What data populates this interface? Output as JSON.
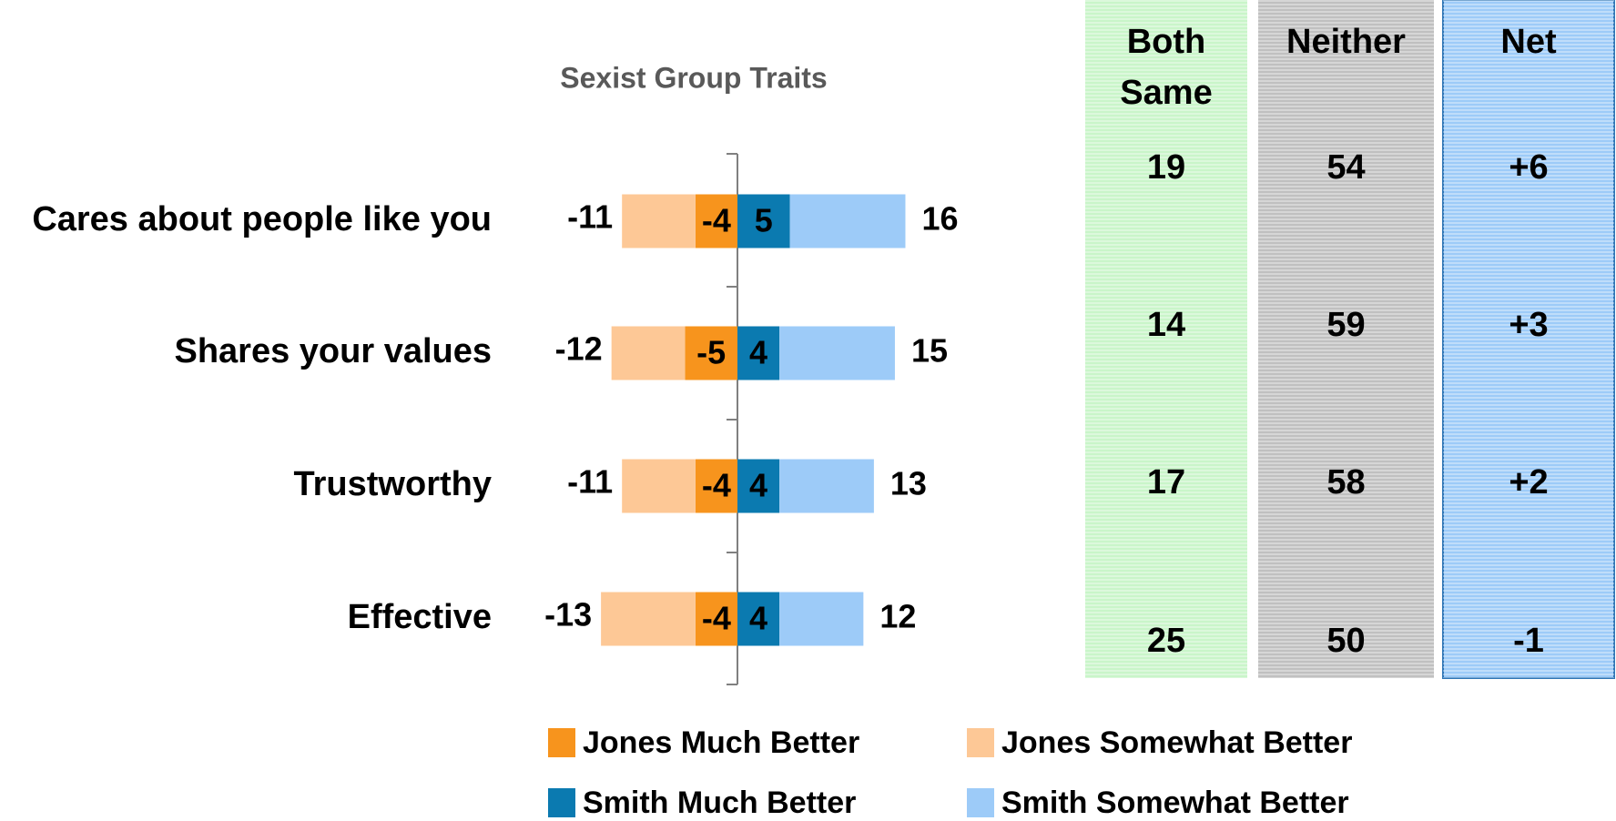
{
  "chart_data": {
    "type": "bar",
    "orientation": "horizontal",
    "stacked": true,
    "title": "Sexist Group Traits",
    "categories": [
      "Cares about people like you",
      "Shares your values",
      "Trustworthy",
      "Effective"
    ],
    "series": [
      {
        "name": "Jones Much Better",
        "color": "#f7941d",
        "values": [
          -4,
          -5,
          -4,
          -4
        ]
      },
      {
        "name": "Jones Somewhat Better",
        "color": "#fdc896",
        "values": [
          -7,
          -7,
          -7,
          -9
        ]
      },
      {
        "name": "Smith Much Better",
        "color": "#0b7ab0",
        "values": [
          5,
          4,
          4,
          4
        ]
      },
      {
        "name": "Smith Somewhat Better",
        "color": "#9dcbf8",
        "values": [
          11,
          11,
          9,
          8
        ]
      }
    ],
    "jones_totals": [
      -11,
      -12,
      -11,
      -13
    ],
    "smith_totals": [
      16,
      15,
      13,
      12
    ],
    "xlim": [
      -17,
      17
    ]
  },
  "table": {
    "columns": [
      {
        "header": "Both Same",
        "color": "#c9f5c9",
        "values": [
          19,
          14,
          17,
          25
        ]
      },
      {
        "header": "Neither",
        "color": "#c0c0c0",
        "values": [
          54,
          59,
          58,
          50
        ]
      },
      {
        "header": "Net",
        "color": "#9dcbf8",
        "values": [
          6,
          3,
          2,
          -1
        ],
        "value_labels": [
          "+6",
          "+3",
          "+2",
          "-1"
        ]
      }
    ]
  }
}
